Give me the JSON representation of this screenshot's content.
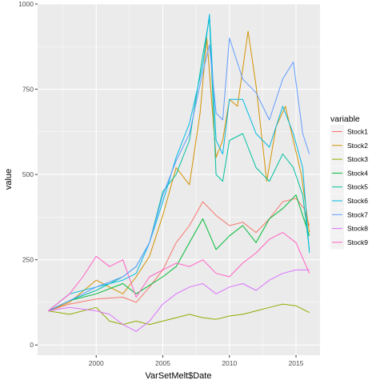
{
  "chart_data": {
    "type": "line",
    "xlabel": "VarSetMelt$Date",
    "ylabel": "value",
    "x_ticks": [
      "2000",
      "2005",
      "2010",
      "2015"
    ],
    "y_ticks": [
      "0",
      "250",
      "500",
      "750",
      "1000"
    ],
    "xlim": [
      1995.6,
      2016.8
    ],
    "ylim": [
      -30,
      1000
    ],
    "grid": true,
    "legend": {
      "title": "variable",
      "placement": "right"
    },
    "series": [
      {
        "name": "Stock1",
        "color": "#F8766D",
        "points": [
          [
            1996.4,
            100
          ],
          [
            1998,
            120
          ],
          [
            2000,
            135
          ],
          [
            2002,
            140
          ],
          [
            2003,
            125
          ],
          [
            2004,
            170
          ],
          [
            2005,
            220
          ],
          [
            2006,
            300
          ],
          [
            2007,
            350
          ],
          [
            2008,
            420
          ],
          [
            2009,
            380
          ],
          [
            2010,
            350
          ],
          [
            2011,
            360
          ],
          [
            2012,
            330
          ],
          [
            2013,
            370
          ],
          [
            2014,
            420
          ],
          [
            2015,
            430
          ],
          [
            2015.6,
            400
          ],
          [
            2016,
            350
          ]
        ]
      },
      {
        "name": "Stock2",
        "color": "#D39200",
        "points": [
          [
            1996.4,
            100
          ],
          [
            1998,
            125
          ],
          [
            2000,
            190
          ],
          [
            2001,
            170
          ],
          [
            2002,
            150
          ],
          [
            2003,
            200
          ],
          [
            2004,
            260
          ],
          [
            2005,
            380
          ],
          [
            2006,
            520
          ],
          [
            2007,
            470
          ],
          [
            2007.8,
            680
          ],
          [
            2008.3,
            900
          ],
          [
            2009,
            550
          ],
          [
            2009.5,
            600
          ],
          [
            2010,
            720
          ],
          [
            2010.6,
            700
          ],
          [
            2011.4,
            920
          ],
          [
            2012,
            760
          ],
          [
            2012.8,
            480
          ],
          [
            2013.5,
            640
          ],
          [
            2014.2,
            700
          ],
          [
            2014.8,
            600
          ],
          [
            2015.4,
            500
          ],
          [
            2016,
            330
          ]
        ]
      },
      {
        "name": "Stock3",
        "color": "#93AA00",
        "points": [
          [
            1996.4,
            100
          ],
          [
            1998,
            90
          ],
          [
            2000,
            110
          ],
          [
            2001,
            70
          ],
          [
            2002,
            60
          ],
          [
            2003,
            70
          ],
          [
            2004,
            60
          ],
          [
            2005,
            70
          ],
          [
            2006,
            80
          ],
          [
            2007,
            90
          ],
          [
            2008,
            80
          ],
          [
            2009,
            75
          ],
          [
            2010,
            85
          ],
          [
            2011,
            90
          ],
          [
            2012,
            100
          ],
          [
            2013,
            110
          ],
          [
            2014,
            120
          ],
          [
            2015,
            115
          ],
          [
            2016,
            95
          ]
        ]
      },
      {
        "name": "Stock4",
        "color": "#00BA38",
        "points": [
          [
            1996.4,
            100
          ],
          [
            1998,
            130
          ],
          [
            2000,
            150
          ],
          [
            2002,
            180
          ],
          [
            2003,
            150
          ],
          [
            2004,
            175
          ],
          [
            2005,
            200
          ],
          [
            2006,
            230
          ],
          [
            2007,
            300
          ],
          [
            2008,
            370
          ],
          [
            2009,
            280
          ],
          [
            2010,
            320
          ],
          [
            2011,
            350
          ],
          [
            2012,
            300
          ],
          [
            2013,
            370
          ],
          [
            2014,
            400
          ],
          [
            2015,
            440
          ],
          [
            2015.5,
            380
          ],
          [
            2016,
            320
          ]
        ]
      },
      {
        "name": "Stock5",
        "color": "#00C19F",
        "points": [
          [
            1996.4,
            100
          ],
          [
            1998,
            130
          ],
          [
            2000,
            160
          ],
          [
            2002,
            200
          ],
          [
            2003,
            230
          ],
          [
            2004,
            300
          ],
          [
            2005,
            450
          ],
          [
            2006,
            500
          ],
          [
            2007,
            600
          ],
          [
            2008,
            850
          ],
          [
            2008.5,
            960
          ],
          [
            2009,
            500
          ],
          [
            2009.5,
            480
          ],
          [
            2010,
            600
          ],
          [
            2011,
            620
          ],
          [
            2012,
            520
          ],
          [
            2013,
            480
          ],
          [
            2014,
            560
          ],
          [
            2014.8,
            520
          ],
          [
            2015.5,
            440
          ],
          [
            2016,
            280
          ]
        ]
      },
      {
        "name": "Stock6",
        "color": "#00B9E3",
        "points": [
          [
            1996.4,
            100
          ],
          [
            1998,
            150
          ],
          [
            2000,
            170
          ],
          [
            2002,
            190
          ],
          [
            2003,
            210
          ],
          [
            2004,
            300
          ],
          [
            2005,
            420
          ],
          [
            2006,
            550
          ],
          [
            2007,
            650
          ],
          [
            2008,
            820
          ],
          [
            2008.5,
            970
          ],
          [
            2009,
            600
          ],
          [
            2009.5,
            560
          ],
          [
            2010,
            720
          ],
          [
            2011,
            720
          ],
          [
            2012,
            620
          ],
          [
            2013,
            580
          ],
          [
            2014,
            700
          ],
          [
            2014.8,
            620
          ],
          [
            2015.5,
            520
          ],
          [
            2016,
            270
          ]
        ]
      },
      {
        "name": "Stock7",
        "color": "#619CFF",
        "points": [
          [
            1996.4,
            100
          ],
          [
            1998,
            130
          ],
          [
            2000,
            170
          ],
          [
            2002,
            200
          ],
          [
            2003,
            230
          ],
          [
            2004,
            300
          ],
          [
            2005,
            440
          ],
          [
            2006,
            540
          ],
          [
            2007,
            620
          ],
          [
            2008,
            800
          ],
          [
            2008.5,
            880
          ],
          [
            2009,
            680
          ],
          [
            2009.5,
            660
          ],
          [
            2010,
            900
          ],
          [
            2011,
            780
          ],
          [
            2012,
            740
          ],
          [
            2013,
            660
          ],
          [
            2014,
            780
          ],
          [
            2014.8,
            830
          ],
          [
            2015.5,
            620
          ],
          [
            2016,
            560
          ]
        ]
      },
      {
        "name": "Stock8",
        "color": "#DB72FB",
        "points": [
          [
            1996.4,
            100
          ],
          [
            1998,
            110
          ],
          [
            2000,
            100
          ],
          [
            2001,
            90
          ],
          [
            2002,
            60
          ],
          [
            2003,
            40
          ],
          [
            2004,
            70
          ],
          [
            2005,
            120
          ],
          [
            2006,
            150
          ],
          [
            2007,
            170
          ],
          [
            2008,
            180
          ],
          [
            2009,
            150
          ],
          [
            2010,
            170
          ],
          [
            2011,
            180
          ],
          [
            2012,
            160
          ],
          [
            2013,
            190
          ],
          [
            2014,
            210
          ],
          [
            2015,
            220
          ],
          [
            2016,
            220
          ]
        ]
      },
      {
        "name": "Stock9",
        "color": "#FF61C3",
        "points": [
          [
            1996.4,
            100
          ],
          [
            1998,
            150
          ],
          [
            1999,
            200
          ],
          [
            2000,
            260
          ],
          [
            2001,
            230
          ],
          [
            2002,
            250
          ],
          [
            2003,
            140
          ],
          [
            2004,
            200
          ],
          [
            2005,
            220
          ],
          [
            2006,
            240
          ],
          [
            2007,
            230
          ],
          [
            2008,
            250
          ],
          [
            2009,
            210
          ],
          [
            2010,
            200
          ],
          [
            2011,
            240
          ],
          [
            2012,
            270
          ],
          [
            2013,
            310
          ],
          [
            2014,
            330
          ],
          [
            2015,
            300
          ],
          [
            2016,
            210
          ]
        ]
      }
    ]
  }
}
